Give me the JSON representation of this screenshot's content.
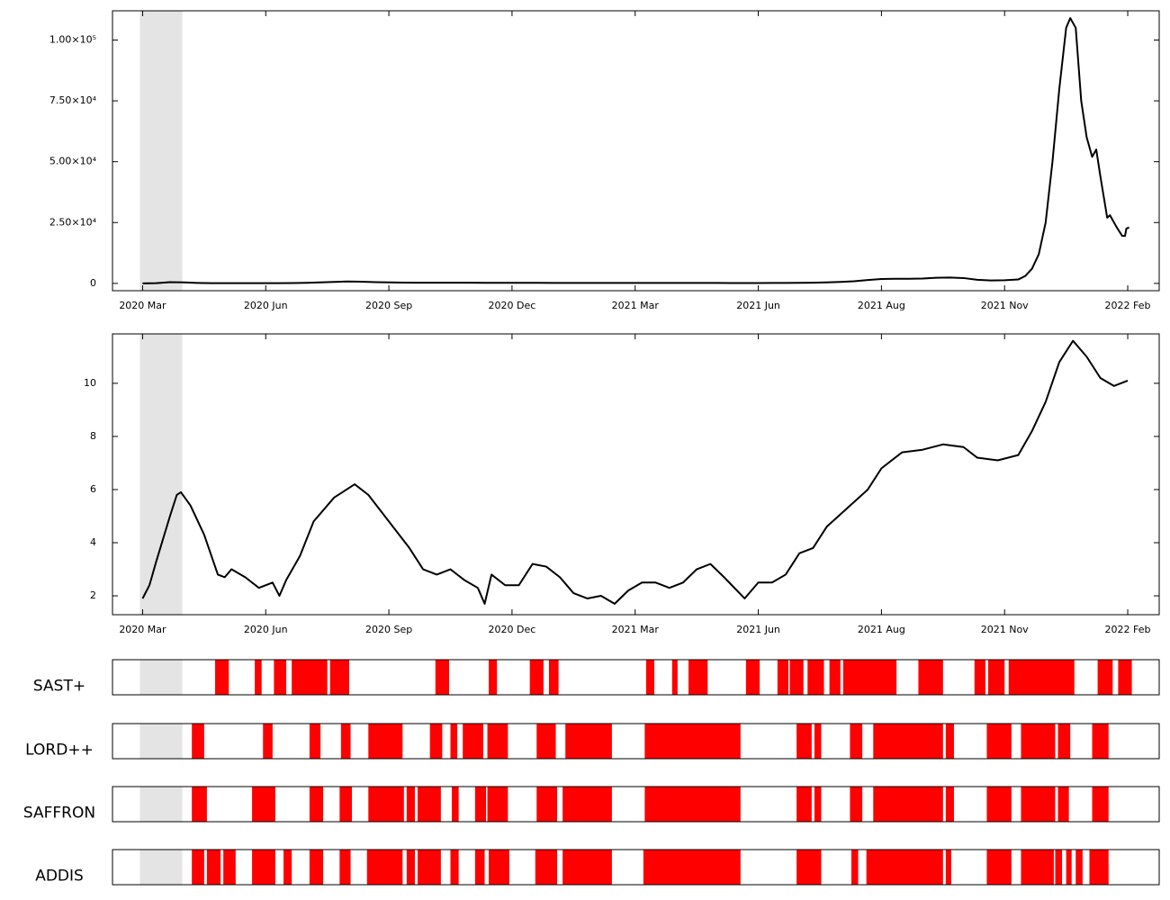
{
  "chart_data": [
    {
      "type": "line",
      "color": "#000000",
      "shade": [
        -2,
        29
      ],
      "xlim": [
        -22,
        743
      ],
      "xticks": [
        {
          "value": 0,
          "label": "2020 Mar"
        },
        {
          "value": 90,
          "label": "2020 Jun"
        },
        {
          "value": 180,
          "label": "2020 Sep"
        },
        {
          "value": 270,
          "label": "2020 Dec"
        },
        {
          "value": 360,
          "label": "2021 Mar"
        },
        {
          "value": 450,
          "label": "2021 Jun"
        },
        {
          "value": 540,
          "label": "2021 Aug"
        },
        {
          "value": 630,
          "label": "2021 Nov"
        },
        {
          "value": 720,
          "label": "2022 Feb"
        }
      ],
      "ylim": [
        -3000,
        112000
      ],
      "yticks": [
        0,
        {
          "value": 25000,
          "label": "2.50×10⁴"
        },
        {
          "value": 50000,
          "label": "5.00×10⁴"
        },
        {
          "value": 75000,
          "label": "7.50×10⁴"
        },
        {
          "value": 100000,
          "label": "1.00×10⁵"
        }
      ],
      "x": [
        0,
        10,
        20,
        30,
        40,
        50,
        60,
        70,
        80,
        90,
        100,
        110,
        120,
        130,
        140,
        150,
        160,
        170,
        180,
        190,
        200,
        210,
        220,
        230,
        240,
        250,
        260,
        270,
        280,
        290,
        300,
        310,
        320,
        330,
        340,
        350,
        360,
        370,
        380,
        390,
        400,
        410,
        420,
        430,
        440,
        450,
        460,
        470,
        480,
        490,
        500,
        510,
        520,
        530,
        540,
        550,
        560,
        570,
        580,
        590,
        600,
        610,
        620,
        630,
        640,
        645,
        650,
        655,
        660,
        665,
        670,
        675,
        678,
        682,
        686,
        690,
        694,
        697,
        700,
        705,
        707,
        712,
        716,
        718,
        719,
        721
      ],
      "values": [
        0,
        100,
        500,
        400,
        200,
        100,
        100,
        100,
        100,
        100,
        100,
        150,
        250,
        400,
        600,
        800,
        700,
        500,
        400,
        350,
        300,
        300,
        300,
        300,
        300,
        250,
        250,
        250,
        250,
        250,
        200,
        200,
        200,
        200,
        200,
        200,
        200,
        200,
        200,
        200,
        200,
        200,
        200,
        150,
        150,
        150,
        200,
        200,
        250,
        300,
        400,
        600,
        900,
        1400,
        1800,
        1900,
        1900,
        2000,
        2300,
        2400,
        2200,
        1500,
        1200,
        1300,
        1600,
        3000,
        6000,
        12000,
        25000,
        50000,
        80000,
        105000,
        109000,
        105000,
        75000,
        60000,
        52000,
        55000,
        44000,
        27000,
        28000,
        23000,
        19500,
        19500,
        22500,
        23000
      ]
    },
    {
      "type": "line",
      "color": "#000000",
      "shade": [
        -2,
        29
      ],
      "xlim": [
        -22,
        743
      ],
      "xticks": [
        {
          "value": 0,
          "label": "2020 Mar"
        },
        {
          "value": 90,
          "label": "2020 Jun"
        },
        {
          "value": 180,
          "label": "2020 Sep"
        },
        {
          "value": 270,
          "label": "2020 Dec"
        },
        {
          "value": 360,
          "label": "2021 Mar"
        },
        {
          "value": 450,
          "label": "2021 Jun"
        },
        {
          "value": 540,
          "label": "2021 Aug"
        },
        {
          "value": 630,
          "label": "2021 Nov"
        },
        {
          "value": 720,
          "label": "2022 Feb"
        }
      ],
      "ylim": [
        1.29,
        11.86
      ],
      "yticks": [
        2,
        4,
        6,
        8,
        10
      ],
      "x": [
        0,
        5,
        10,
        20,
        25,
        28,
        35,
        45,
        55,
        60,
        65,
        75,
        85,
        95,
        100,
        105,
        115,
        125,
        140,
        155,
        165,
        180,
        195,
        205,
        215,
        225,
        235,
        245,
        250,
        255,
        265,
        275,
        285,
        295,
        305,
        315,
        325,
        335,
        345,
        355,
        365,
        375,
        385,
        395,
        405,
        415,
        425,
        440,
        450,
        460,
        470,
        480,
        490,
        500,
        515,
        530,
        540,
        555,
        570,
        585,
        600,
        610,
        625,
        640,
        650,
        660,
        670,
        680,
        690,
        700,
        710,
        720
      ],
      "values": [
        1.9,
        2.4,
        3.3,
        5.0,
        5.8,
        5.9,
        5.4,
        4.3,
        2.8,
        2.7,
        3.0,
        2.7,
        2.3,
        2.5,
        2.0,
        2.6,
        3.5,
        4.8,
        5.7,
        6.2,
        5.8,
        4.8,
        3.8,
        3.0,
        2.8,
        3.0,
        2.6,
        2.3,
        1.7,
        2.8,
        2.4,
        2.4,
        3.2,
        3.1,
        2.7,
        2.1,
        1.9,
        2.0,
        1.7,
        2.2,
        2.5,
        2.5,
        2.3,
        2.5,
        3.0,
        3.2,
        2.7,
        1.9,
        2.5,
        2.5,
        2.8,
        3.6,
        3.8,
        4.6,
        5.3,
        6.0,
        6.8,
        7.4,
        7.5,
        7.7,
        7.6,
        7.2,
        7.1,
        7.3,
        8.2,
        9.3,
        10.8,
        11.6,
        11.0,
        10.2,
        9.9,
        10.1
      ]
    },
    {
      "type": "intervals",
      "label": "SAST+",
      "color": "#ff0000",
      "shade": [
        -2,
        29
      ],
      "xlim": [
        -22,
        743
      ],
      "intervals": [
        [
          53,
          63
        ],
        [
          82,
          87
        ],
        [
          96,
          105
        ],
        [
          109,
          135
        ],
        [
          137,
          151
        ],
        [
          214,
          224
        ],
        [
          253,
          259
        ],
        [
          283,
          293
        ],
        [
          297,
          304
        ],
        [
          368,
          374
        ],
        [
          387,
          391
        ],
        [
          399,
          413
        ],
        [
          441,
          451
        ],
        [
          464,
          472
        ],
        [
          473,
          483
        ],
        [
          486,
          498
        ],
        [
          502,
          510
        ],
        [
          512,
          551
        ],
        [
          567,
          585
        ],
        [
          608,
          616
        ],
        [
          618,
          630
        ],
        [
          633,
          681
        ],
        [
          698,
          709
        ],
        [
          713,
          723
        ]
      ]
    },
    {
      "type": "intervals",
      "label": "LORD++",
      "color": "#ff0000",
      "shade": [
        -2,
        29
      ],
      "xlim": [
        -22,
        743
      ],
      "intervals": [
        [
          36,
          45
        ],
        [
          88,
          95
        ],
        [
          122,
          130
        ],
        [
          145,
          152
        ],
        [
          165,
          190
        ],
        [
          210,
          219
        ],
        [
          225,
          230
        ],
        [
          234,
          249
        ],
        [
          252,
          267
        ],
        [
          288,
          302
        ],
        [
          309,
          343
        ],
        [
          367,
          437
        ],
        [
          478,
          489
        ],
        [
          491,
          496
        ],
        [
          517,
          526
        ],
        [
          534,
          585
        ],
        [
          587,
          593
        ],
        [
          617,
          635
        ],
        [
          642,
          667
        ],
        [
          669,
          678
        ],
        [
          694,
          706
        ]
      ]
    },
    {
      "type": "intervals",
      "label": "SAFFRON",
      "color": "#ff0000",
      "shade": [
        -2,
        29
      ],
      "xlim": [
        -22,
        743
      ],
      "intervals": [
        [
          36,
          47
        ],
        [
          80,
          97
        ],
        [
          122,
          132
        ],
        [
          144,
          153
        ],
        [
          165,
          191
        ],
        [
          193,
          199
        ],
        [
          201,
          218
        ],
        [
          226,
          231
        ],
        [
          243,
          251
        ],
        [
          252,
          267
        ],
        [
          288,
          303
        ],
        [
          307,
          343
        ],
        [
          367,
          437
        ],
        [
          478,
          489
        ],
        [
          491,
          496
        ],
        [
          517,
          526
        ],
        [
          534,
          585
        ],
        [
          587,
          593
        ],
        [
          617,
          635
        ],
        [
          642,
          667
        ],
        [
          669,
          677
        ],
        [
          694,
          706
        ]
      ]
    },
    {
      "type": "intervals",
      "label": "ADDIS",
      "color": "#ff0000",
      "shade": [
        -2,
        29
      ],
      "xlim": [
        -22,
        743
      ],
      "intervals": [
        [
          36,
          45
        ],
        [
          47,
          57
        ],
        [
          59,
          68
        ],
        [
          80,
          97
        ],
        [
          103,
          109
        ],
        [
          122,
          132
        ],
        [
          144,
          152
        ],
        [
          164,
          190
        ],
        [
          193,
          199
        ],
        [
          201,
          218
        ],
        [
          225,
          231
        ],
        [
          243,
          250
        ],
        [
          253,
          268
        ],
        [
          287,
          303
        ],
        [
          307,
          343
        ],
        [
          366,
          437
        ],
        [
          478,
          496
        ],
        [
          518,
          523
        ],
        [
          529,
          585
        ],
        [
          587,
          591
        ],
        [
          617,
          635
        ],
        [
          642,
          666
        ],
        [
          667,
          672
        ],
        [
          675,
          679
        ],
        [
          682,
          687
        ],
        [
          692,
          706
        ]
      ]
    }
  ]
}
